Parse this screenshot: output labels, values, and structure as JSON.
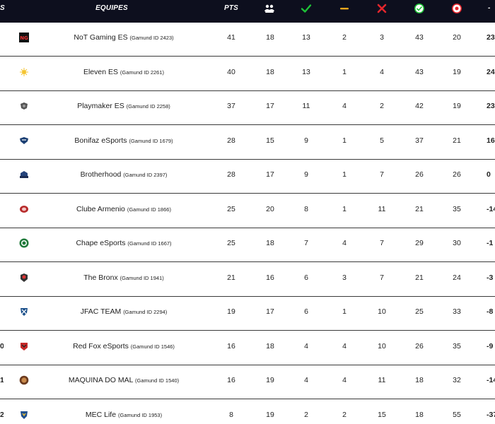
{
  "header": {
    "pos_label": "S",
    "team_label": "EQUIPES",
    "pts_label": "PTS",
    "sg_label": "-",
    "icons": {
      "played": "team-icon",
      "wins": "check-icon",
      "draws": "dash-icon",
      "losses": "x-icon",
      "goals_for": "ball-in-icon",
      "goals_against": "ball-against-icon"
    },
    "colors": {
      "bg": "#0d0f1e",
      "win": "#1ec337",
      "draw": "#f2a81d",
      "loss": "#e3262c"
    }
  },
  "rows": [
    {
      "pos": "",
      "logo": "not-gaming-logo-icon",
      "team": "NoT Gaming ES",
      "gid": "(Gamund ID 2423)",
      "pts": "41",
      "j": "18",
      "v": "13",
      "e": "2",
      "d": "3",
      "gp": "43",
      "gc": "20",
      "sg": "23"
    },
    {
      "pos": "",
      "logo": "eleven-logo-icon",
      "team": "Eleven ES",
      "gid": "(Gamund ID 2261)",
      "pts": "40",
      "j": "18",
      "v": "13",
      "e": "1",
      "d": "4",
      "gp": "43",
      "gc": "19",
      "sg": "24"
    },
    {
      "pos": "",
      "logo": "playmaker-logo-icon",
      "team": "Playmaker ES",
      "gid": "(Gamund ID 2258)",
      "pts": "37",
      "j": "17",
      "v": "11",
      "e": "4",
      "d": "2",
      "gp": "42",
      "gc": "19",
      "sg": "23"
    },
    {
      "pos": "",
      "logo": "bonifaz-logo-icon",
      "team": "Bonifaz eSports",
      "gid": "(Gamund ID 1679)",
      "pts": "28",
      "j": "15",
      "v": "9",
      "e": "1",
      "d": "5",
      "gp": "37",
      "gc": "21",
      "sg": "16"
    },
    {
      "pos": "",
      "logo": "brotherhood-logo-icon",
      "team": "Brotherhood",
      "gid": "(Gamund ID 2397)",
      "pts": "28",
      "j": "17",
      "v": "9",
      "e": "1",
      "d": "7",
      "gp": "26",
      "gc": "26",
      "sg": "0"
    },
    {
      "pos": "",
      "logo": "clube-armenio-logo-icon",
      "team": "Clube Armenio",
      "gid": "(Gamund ID 1866)",
      "pts": "25",
      "j": "20",
      "v": "8",
      "e": "1",
      "d": "11",
      "gp": "21",
      "gc": "35",
      "sg": "-14"
    },
    {
      "pos": "",
      "logo": "chape-logo-icon",
      "team": "Chape eSports",
      "gid": "(Gamund ID 1667)",
      "pts": "25",
      "j": "18",
      "v": "7",
      "e": "4",
      "d": "7",
      "gp": "29",
      "gc": "30",
      "sg": "-1"
    },
    {
      "pos": "",
      "logo": "the-bronx-logo-icon",
      "team": "The Bronx",
      "gid": "(Gamund ID 1941)",
      "pts": "21",
      "j": "16",
      "v": "6",
      "e": "3",
      "d": "7",
      "gp": "21",
      "gc": "24",
      "sg": "-3"
    },
    {
      "pos": "",
      "logo": "jfac-logo-icon",
      "team": "JFAC TEAM",
      "gid": "(Gamund ID 2294)",
      "pts": "19",
      "j": "17",
      "v": "6",
      "e": "1",
      "d": "10",
      "gp": "25",
      "gc": "33",
      "sg": "-8"
    },
    {
      "pos": "0",
      "logo": "red-fox-logo-icon",
      "team": "Red Fox eSports",
      "gid": "(Gamund ID 1546)",
      "pts": "16",
      "j": "18",
      "v": "4",
      "e": "4",
      "d": "10",
      "gp": "26",
      "gc": "35",
      "sg": "-9"
    },
    {
      "pos": "1",
      "logo": "maquina-logo-icon",
      "team": "MAQUINA DO MAL",
      "gid": "(Gamund ID 1540)",
      "pts": "16",
      "j": "19",
      "v": "4",
      "e": "4",
      "d": "11",
      "gp": "18",
      "gc": "32",
      "sg": "-14"
    },
    {
      "pos": "2",
      "logo": "mec-life-logo-icon",
      "team": "MEC Life",
      "gid": "(Gamund ID 1953)",
      "pts": "8",
      "j": "19",
      "v": "2",
      "e": "2",
      "d": "15",
      "gp": "18",
      "gc": "55",
      "sg": "-37"
    }
  ]
}
